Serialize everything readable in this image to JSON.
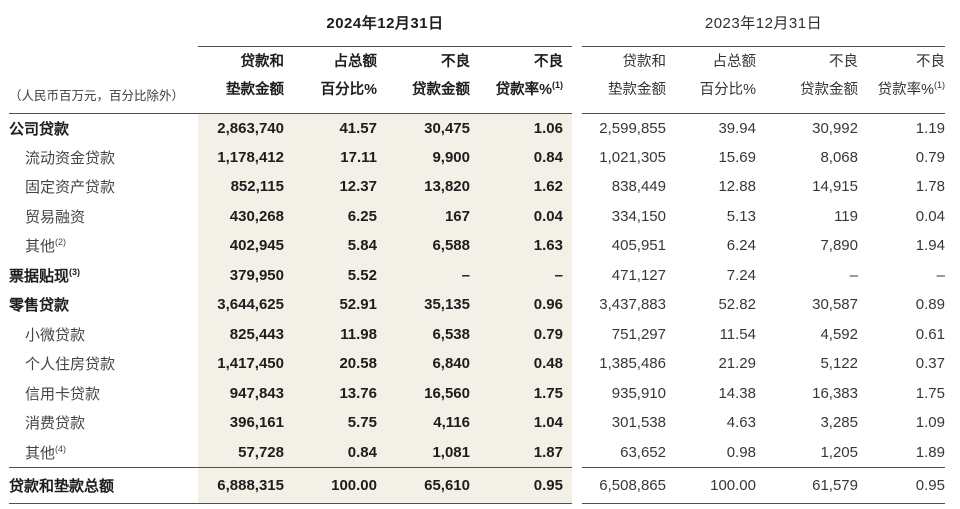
{
  "table": {
    "unit_note": "（人民币百万元，百分比除外）",
    "year_2024": "2024年12月31日",
    "year_2023": "2023年12月31日",
    "column_headers": [
      {
        "line1": "贷款和",
        "line2": "垫款金额",
        "sup": ""
      },
      {
        "line1": "占总额",
        "line2": "百分比%",
        "sup": ""
      },
      {
        "line1": "不良",
        "line2": "贷款金额",
        "sup": ""
      },
      {
        "line1": "不良",
        "line2": "贷款率%",
        "sup": "(1)"
      }
    ],
    "column_names": [
      "loans-amount",
      "pct-of-total",
      "npl-amount",
      "npl-ratio"
    ],
    "rows": [
      {
        "label": "公司贷款",
        "sup": "",
        "style": "section",
        "y2024": [
          "2,863,740",
          "41.57",
          "30,475",
          "1.06"
        ],
        "y2023": [
          "2,599,855",
          "39.94",
          "30,992",
          "1.19"
        ]
      },
      {
        "label": "流动资金贷款",
        "sup": "",
        "style": "sub",
        "y2024": [
          "1,178,412",
          "17.11",
          "9,900",
          "0.84"
        ],
        "y2023": [
          "1,021,305",
          "15.69",
          "8,068",
          "0.79"
        ]
      },
      {
        "label": "固定资产贷款",
        "sup": "",
        "style": "sub",
        "y2024": [
          "852,115",
          "12.37",
          "13,820",
          "1.62"
        ],
        "y2023": [
          "838,449",
          "12.88",
          "14,915",
          "1.78"
        ]
      },
      {
        "label": "贸易融资",
        "sup": "",
        "style": "sub",
        "y2024": [
          "430,268",
          "6.25",
          "167",
          "0.04"
        ],
        "y2023": [
          "334,150",
          "5.13",
          "119",
          "0.04"
        ]
      },
      {
        "label": "其他",
        "sup": "(2)",
        "style": "sub",
        "y2024": [
          "402,945",
          "5.84",
          "6,588",
          "1.63"
        ],
        "y2023": [
          "405,951",
          "6.24",
          "7,890",
          "1.94"
        ]
      },
      {
        "label": "票据贴现",
        "sup": "(3)",
        "style": "section",
        "y2024": [
          "379,950",
          "5.52",
          "–",
          "–"
        ],
        "y2023": [
          "471,127",
          "7.24",
          "–",
          "–"
        ]
      },
      {
        "label": "零售贷款",
        "sup": "",
        "style": "section",
        "y2024": [
          "3,644,625",
          "52.91",
          "35,135",
          "0.96"
        ],
        "y2023": [
          "3,437,883",
          "52.82",
          "30,587",
          "0.89"
        ]
      },
      {
        "label": "小微贷款",
        "sup": "",
        "style": "sub",
        "y2024": [
          "825,443",
          "11.98",
          "6,538",
          "0.79"
        ],
        "y2023": [
          "751,297",
          "11.54",
          "4,592",
          "0.61"
        ]
      },
      {
        "label": "个人住房贷款",
        "sup": "",
        "style": "sub",
        "y2024": [
          "1,417,450",
          "20.58",
          "6,840",
          "0.48"
        ],
        "y2023": [
          "1,385,486",
          "21.29",
          "5,122",
          "0.37"
        ]
      },
      {
        "label": "信用卡贷款",
        "sup": "",
        "style": "sub",
        "y2024": [
          "947,843",
          "13.76",
          "16,560",
          "1.75"
        ],
        "y2023": [
          "935,910",
          "14.38",
          "16,383",
          "1.75"
        ]
      },
      {
        "label": "消费贷款",
        "sup": "",
        "style": "sub",
        "y2024": [
          "396,161",
          "5.75",
          "4,116",
          "1.04"
        ],
        "y2023": [
          "301,538",
          "4.63",
          "3,285",
          "1.09"
        ]
      },
      {
        "label": "其他",
        "sup": "(4)",
        "style": "sub",
        "y2024": [
          "57,728",
          "0.84",
          "1,081",
          "1.87"
        ],
        "y2023": [
          "63,652",
          "0.98",
          "1,205",
          "1.89"
        ]
      },
      {
        "label": "贷款和垫款总额",
        "sup": "",
        "style": "total",
        "y2024": [
          "6,888,315",
          "100.00",
          "65,610",
          "0.95"
        ],
        "y2023": [
          "6,508,865",
          "100.00",
          "61,579",
          "0.95"
        ]
      }
    ],
    "colors": {
      "highlight_bg": "#f3f0e8",
      "rule": "#4f4f4f",
      "text_bold": "#1d1d1d",
      "text_regular": "#3c3c3c"
    }
  }
}
